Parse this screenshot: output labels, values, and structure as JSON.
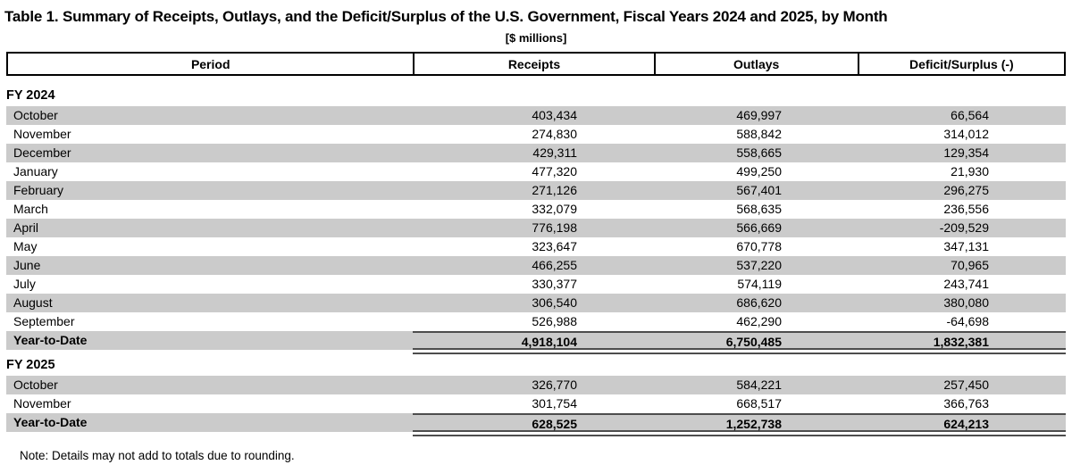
{
  "page": {
    "title": "Table 1. Summary of Receipts, Outlays, and the Deficit/Surplus of the U.S. Government, Fiscal Years 2024 and 2025, by Month",
    "subtitle": "[$ millions]",
    "note": "Note: Details may not add to totals due to rounding."
  },
  "columns": {
    "period": "Period",
    "receipts": "Receipts",
    "outlays": "Outlays",
    "deficit": "Deficit/Surplus (-)"
  },
  "colors": {
    "stripe_gray": "#cbcbcb",
    "total_rule": "#4d4d4d",
    "header_border": "#000000",
    "text": "#000000"
  },
  "sections": [
    {
      "label": "FY 2024",
      "rows": [
        {
          "period": "October",
          "receipts": "403,434",
          "outlays": "469,997",
          "deficit": "66,564"
        },
        {
          "period": "November",
          "receipts": "274,830",
          "outlays": "588,842",
          "deficit": "314,012"
        },
        {
          "period": "December",
          "receipts": "429,311",
          "outlays": "558,665",
          "deficit": "129,354"
        },
        {
          "period": "January",
          "receipts": "477,320",
          "outlays": "499,250",
          "deficit": "21,930"
        },
        {
          "period": "February",
          "receipts": "271,126",
          "outlays": "567,401",
          "deficit": "296,275"
        },
        {
          "period": "March",
          "receipts": "332,079",
          "outlays": "568,635",
          "deficit": "236,556"
        },
        {
          "period": "April",
          "receipts": "776,198",
          "outlays": "566,669",
          "deficit": "-209,529"
        },
        {
          "period": "May",
          "receipts": "323,647",
          "outlays": "670,778",
          "deficit": "347,131"
        },
        {
          "period": "June",
          "receipts": "466,255",
          "outlays": "537,220",
          "deficit": "70,965"
        },
        {
          "period": "July",
          "receipts": "330,377",
          "outlays": "574,119",
          "deficit": "243,741"
        },
        {
          "period": "August",
          "receipts": "306,540",
          "outlays": "686,620",
          "deficit": "380,080"
        },
        {
          "period": "September",
          "receipts": "526,988",
          "outlays": "462,290",
          "deficit": "-64,698"
        }
      ],
      "total": {
        "period": "Year-to-Date",
        "receipts": "4,918,104",
        "outlays": "6,750,485",
        "deficit": "1,832,381"
      }
    },
    {
      "label": "FY 2025",
      "rows": [
        {
          "period": "October",
          "receipts": "326,770",
          "outlays": "584,221",
          "deficit": "257,450"
        },
        {
          "period": "November",
          "receipts": "301,754",
          "outlays": "668,517",
          "deficit": "366,763"
        }
      ],
      "total": {
        "period": "Year-to-Date",
        "receipts": "628,525",
        "outlays": "1,252,738",
        "deficit": "624,213"
      }
    }
  ]
}
